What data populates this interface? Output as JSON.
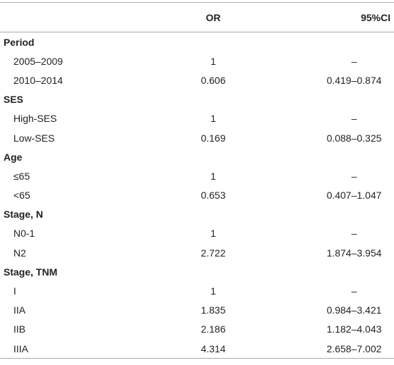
{
  "header": {
    "columns": [
      "OR",
      "95%CI"
    ]
  },
  "groups": [
    {
      "label": "Period",
      "rows": [
        {
          "label": "2005–2009",
          "or": "1",
          "ci": "–"
        },
        {
          "label": "2010–2014",
          "or": "0.606",
          "ci": "0.419–0.874"
        }
      ]
    },
    {
      "label": "SES",
      "rows": [
        {
          "label": "High-SES",
          "or": "1",
          "ci": "–"
        },
        {
          "label": "Low-SES",
          "or": "0.169",
          "ci": "0.088–0.325"
        }
      ]
    },
    {
      "label": "Age",
      "rows": [
        {
          "label": "≤65",
          "or": "1",
          "ci": "–"
        },
        {
          "label": "<65",
          "or": "0.653",
          "ci": "0.407–1.047"
        }
      ]
    },
    {
      "label": "Stage, N",
      "rows": [
        {
          "label": "N0-1",
          "or": "1",
          "ci": "–"
        },
        {
          "label": "N2",
          "or": "2.722",
          "ci": "1.874–3.954"
        }
      ]
    },
    {
      "label": "Stage, TNM",
      "rows": [
        {
          "label": "I",
          "or": "1",
          "ci": "–"
        },
        {
          "label": "IIA",
          "or": "1.835",
          "ci": "0.984–3.421"
        },
        {
          "label": "IIB",
          "or": "2.186",
          "ci": "1.182–4.043"
        },
        {
          "label": "IIIA",
          "or": "4.314",
          "ci": "2.658–7.002"
        }
      ]
    }
  ]
}
